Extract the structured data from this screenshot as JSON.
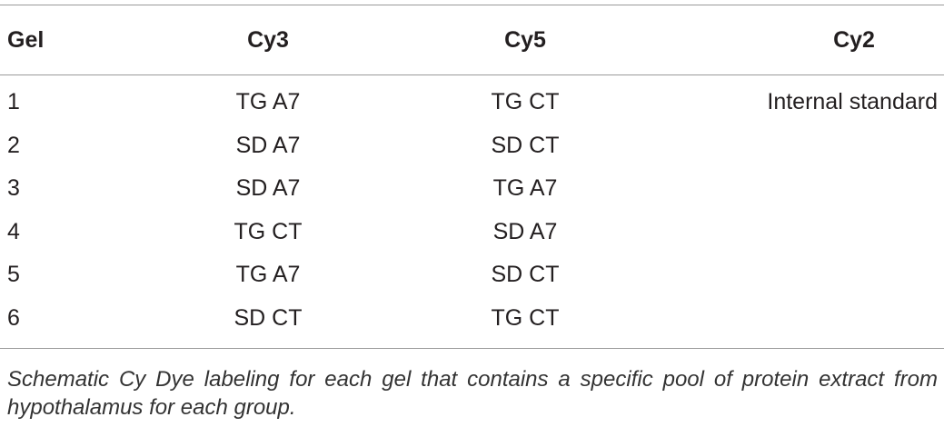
{
  "table": {
    "header": [
      "Gel",
      "Cy3",
      "Cy5",
      "Cy2"
    ],
    "rows": [
      [
        "1",
        "TG A7",
        "TG CT",
        "Internal standard"
      ],
      [
        "2",
        "SD A7",
        "SD CT"
      ],
      [
        "3",
        "SD A7",
        "TG A7"
      ],
      [
        "4",
        "TG CT",
        "SD A7"
      ],
      [
        "5",
        "TG A7",
        "SD CT"
      ],
      [
        "6",
        "SD CT",
        "TG CT"
      ]
    ],
    "caption": "Schematic Cy Dye labeling for each gel that contains a specific pool of protein extract from hypothalamus for each group."
  }
}
